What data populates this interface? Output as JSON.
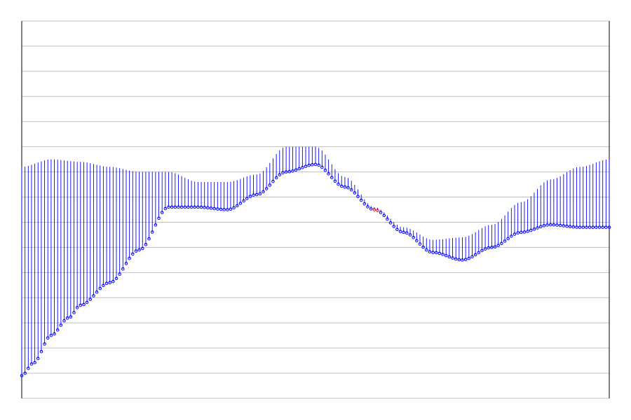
{
  "chart_data": {
    "type": "line",
    "title": "",
    "xlabel": "",
    "ylabel": "",
    "xlim": [
      0,
      1
    ],
    "ylim": [
      -15,
      0
    ],
    "grid": true,
    "n_points": 181,
    "colors": {
      "grid": "#c0c0c0",
      "axis": "#000000",
      "stem": "#0000ff",
      "marker": "#0000ff",
      "highlight": "#ff0000"
    },
    "series": [
      {
        "name": "",
        "role": "upper",
        "x": [
          0,
          0.05,
          0.1,
          0.15,
          0.2,
          0.25,
          0.3,
          0.35,
          0.4,
          0.45,
          0.5,
          0.55,
          0.6,
          0.65,
          0.7,
          0.75,
          0.8,
          0.85,
          0.9,
          0.95,
          1
        ],
        "values": [
          -5.8,
          -5.5,
          -5.6,
          -5.8,
          -6.0,
          -6.0,
          -6.4,
          -6.4,
          -6.1,
          -5.0,
          -5.0,
          -6.2,
          -7.4,
          -8.2,
          -8.7,
          -8.6,
          -8.1,
          -7.2,
          -6.3,
          -5.8,
          -5.5
        ]
      },
      {
        "name": "",
        "role": "lower",
        "x": [
          0,
          0.02,
          0.05,
          0.08,
          0.1,
          0.15,
          0.2,
          0.25,
          0.3,
          0.35,
          0.4,
          0.45,
          0.5,
          0.55,
          0.6,
          0.65,
          0.7,
          0.75,
          0.8,
          0.85,
          0.9,
          0.95,
          1
        ],
        "values": [
          -14.1,
          -13.6,
          -12.5,
          -11.8,
          -11.3,
          -10.4,
          -9.1,
          -7.4,
          -7.4,
          -7.5,
          -6.9,
          -6.0,
          -5.7,
          -6.6,
          -7.5,
          -8.4,
          -9.2,
          -9.5,
          -9.0,
          -8.4,
          -8.1,
          -8.2,
          -8.2
        ]
      }
    ],
    "highlight": {
      "x": [
        0.6,
        0.607
      ],
      "values": [
        -7.5,
        -7.55
      ]
    }
  }
}
